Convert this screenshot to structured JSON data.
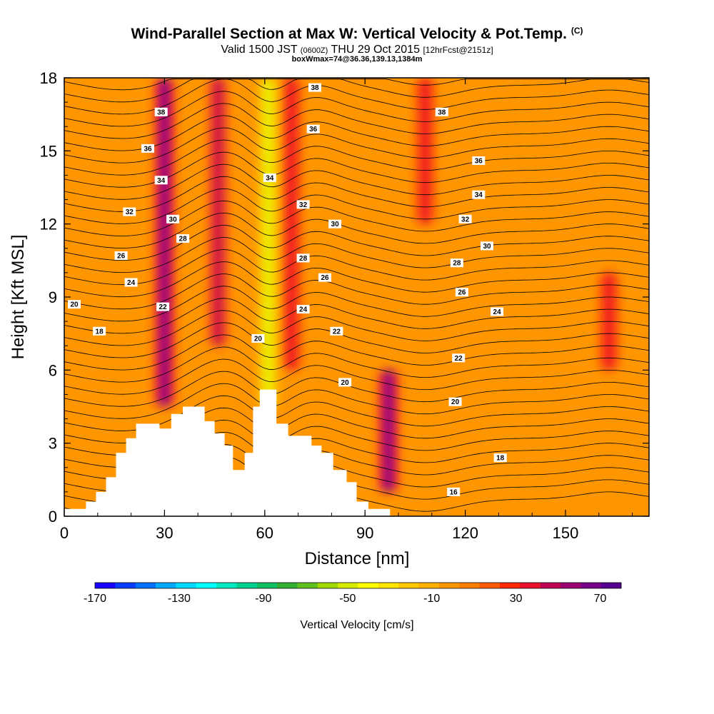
{
  "title": {
    "main": "Wind-Parallel Section at Max W: Vertical Velocity & Pot.Temp.",
    "main_mark": "(C)",
    "valid_prefix": "Valid 1500 JST",
    "valid_z": "(0600Z)",
    "valid_date": "THU 29 Oct 2015",
    "forecast": "[12hrFcst@2151z]",
    "box": "boxWmax=74@36.36,139.13,1384m"
  },
  "chart_data": {
    "type": "heatmap",
    "xlabel": "Distance [nm]",
    "ylabel": "Height [Kft MSL]",
    "xlim": [
      0,
      175
    ],
    "ylim": [
      0,
      18
    ],
    "x_ticks": [
      0,
      30,
      60,
      90,
      120,
      150
    ],
    "y_ticks": [
      0,
      3,
      6,
      9,
      12,
      15,
      18
    ],
    "colorbar": {
      "label": "Vertical Velocity [cm/s]",
      "ticks": [
        -170,
        -130,
        -90,
        -50,
        -10,
        30,
        70
      ],
      "range": [
        -170,
        80
      ],
      "colors": [
        "#1a00ff",
        "#0a3cff",
        "#0070ff",
        "#00a8ff",
        "#00d8ff",
        "#00ffff",
        "#00e8c0",
        "#00d090",
        "#10c060",
        "#30b030",
        "#60c020",
        "#a0d800",
        "#d8ec00",
        "#ffff00",
        "#ffe400",
        "#ffc800",
        "#ffb000",
        "#ff9600",
        "#ff7e00",
        "#ff5a00",
        "#ff2800",
        "#e8102a",
        "#c00050",
        "#9a0070",
        "#760088",
        "#560090"
      ]
    },
    "vertical_velocity_features_cm_s": [
      {
        "x_nm": 30,
        "y_kft": [
          4.5,
          18
        ],
        "w": 75
      },
      {
        "x_nm": 46,
        "y_kft": [
          7,
          18
        ],
        "w": 60
      },
      {
        "x_nm": 61,
        "y_kft": [
          4.5,
          18
        ],
        "w": -50
      },
      {
        "x_nm": 68,
        "y_kft": [
          6,
          18
        ],
        "w": 40
      },
      {
        "x_nm": 97,
        "y_kft": [
          1,
          6
        ],
        "w": 75
      },
      {
        "x_nm": 108,
        "y_kft": [
          12,
          18
        ],
        "w": 40
      },
      {
        "x_nm": 163,
        "y_kft": [
          6,
          10
        ],
        "w": 45
      }
    ],
    "potential_temperature_labels_c": [
      {
        "x_nm": 29,
        "y_kft": 16.6,
        "value": "38"
      },
      {
        "x_nm": 25,
        "y_kft": 15.1,
        "value": "36"
      },
      {
        "x_nm": 29,
        "y_kft": 13.8,
        "value": "34"
      },
      {
        "x_nm": 19.5,
        "y_kft": 12.5,
        "value": "32"
      },
      {
        "x_nm": 32.5,
        "y_kft": 12.2,
        "value": "30"
      },
      {
        "x_nm": 35.5,
        "y_kft": 11.4,
        "value": "28"
      },
      {
        "x_nm": 17,
        "y_kft": 10.7,
        "value": "26"
      },
      {
        "x_nm": 20,
        "y_kft": 9.6,
        "value": "24"
      },
      {
        "x_nm": 29.5,
        "y_kft": 8.6,
        "value": "22"
      },
      {
        "x_nm": 3,
        "y_kft": 8.7,
        "value": "20"
      },
      {
        "x_nm": 10.5,
        "y_kft": 7.6,
        "value": "18"
      },
      {
        "x_nm": 75,
        "y_kft": 17.6,
        "value": "38"
      },
      {
        "x_nm": 74.5,
        "y_kft": 15.9,
        "value": "36"
      },
      {
        "x_nm": 61.5,
        "y_kft": 13.9,
        "value": "34"
      },
      {
        "x_nm": 71.5,
        "y_kft": 12.8,
        "value": "32"
      },
      {
        "x_nm": 81,
        "y_kft": 12.0,
        "value": "30"
      },
      {
        "x_nm": 71.5,
        "y_kft": 10.6,
        "value": "28"
      },
      {
        "x_nm": 78,
        "y_kft": 9.8,
        "value": "26"
      },
      {
        "x_nm": 71.5,
        "y_kft": 8.5,
        "value": "24"
      },
      {
        "x_nm": 81.5,
        "y_kft": 7.6,
        "value": "22"
      },
      {
        "x_nm": 58,
        "y_kft": 7.3,
        "value": "20"
      },
      {
        "x_nm": 84,
        "y_kft": 5.5,
        "value": "20"
      },
      {
        "x_nm": 113,
        "y_kft": 16.6,
        "value": "38"
      },
      {
        "x_nm": 124,
        "y_kft": 14.6,
        "value": "36"
      },
      {
        "x_nm": 124,
        "y_kft": 13.2,
        "value": "34"
      },
      {
        "x_nm": 120,
        "y_kft": 12.2,
        "value": "32"
      },
      {
        "x_nm": 126.5,
        "y_kft": 11.1,
        "value": "30"
      },
      {
        "x_nm": 117.5,
        "y_kft": 10.4,
        "value": "28"
      },
      {
        "x_nm": 119,
        "y_kft": 9.2,
        "value": "26"
      },
      {
        "x_nm": 129.5,
        "y_kft": 8.4,
        "value": "24"
      },
      {
        "x_nm": 118,
        "y_kft": 6.5,
        "value": "22"
      },
      {
        "x_nm": 117,
        "y_kft": 4.7,
        "value": "20"
      },
      {
        "x_nm": 130.5,
        "y_kft": 2.4,
        "value": "18"
      },
      {
        "x_nm": 116.5,
        "y_kft": 1.0,
        "value": "16"
      }
    ],
    "terrain_kft": {
      "x_nm": [
        0,
        6.5,
        6.5,
        9.5,
        9.5,
        12.5,
        12.5,
        15.5,
        15.5,
        18.5,
        18.5,
        21.5,
        21.5,
        24.5,
        24.5,
        28.5,
        28.5,
        32,
        32,
        35.5,
        35.5,
        42,
        42,
        45,
        45,
        48,
        48,
        50.5,
        50.5,
        54,
        54,
        56.5,
        56.5,
        58.5,
        58.5,
        63.5,
        63.5,
        67,
        67,
        74,
        74,
        77,
        77,
        80.5,
        80.5,
        84.5,
        84.5,
        87.5,
        87.5,
        91,
        91,
        97.5,
        97.5,
        175
      ],
      "y_kft": [
        0.3,
        0.3,
        0.6,
        0.6,
        1.0,
        1.0,
        1.6,
        1.6,
        2.6,
        2.6,
        3.2,
        3.2,
        3.8,
        3.8,
        3.8,
        3.8,
        3.6,
        3.6,
        4.2,
        4.2,
        4.5,
        4.5,
        3.9,
        3.9,
        3.4,
        3.4,
        2.9,
        2.9,
        1.9,
        1.9,
        2.6,
        2.6,
        4.5,
        4.5,
        5.2,
        5.2,
        3.8,
        3.8,
        3.3,
        3.3,
        2.9,
        2.9,
        2.6,
        2.6,
        1.9,
        1.9,
        1.4,
        1.4,
        0.6,
        0.6,
        0.3,
        0.3,
        0,
        0
      ]
    }
  }
}
